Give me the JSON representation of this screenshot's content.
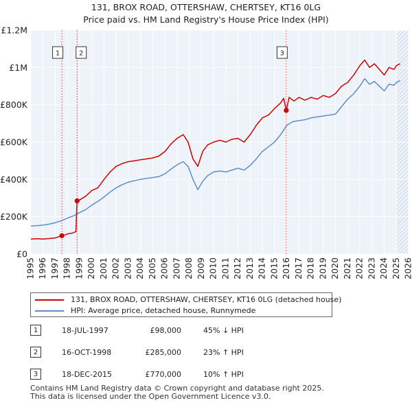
{
  "chart_data": {
    "type": "line",
    "title": "131, BROX ROAD, OTTERSHAW, CHERTSEY, KT16 0LG",
    "subtitle": "Price paid vs. HM Land Registry's House Price Index (HPI)",
    "xlim": [
      1995,
      2026
    ],
    "ylim": [
      0,
      1200000
    ],
    "xticks": [
      1995,
      1996,
      1997,
      1998,
      1999,
      2000,
      2001,
      2002,
      2003,
      2004,
      2005,
      2006,
      2007,
      2008,
      2009,
      2010,
      2011,
      2012,
      2013,
      2014,
      2015,
      2016,
      2017,
      2018,
      2019,
      2020,
      2021,
      2022,
      2023,
      2024,
      2025,
      2026
    ],
    "yticks": [
      {
        "value": 0,
        "label": "£0"
      },
      {
        "value": 200000,
        "label": "£200K"
      },
      {
        "value": 400000,
        "label": "£400K"
      },
      {
        "value": 600000,
        "label": "£600K"
      },
      {
        "value": 800000,
        "label": "£800K"
      },
      {
        "value": 1000000,
        "label": "£1M"
      },
      {
        "value": 1200000,
        "label": "£1.2M"
      }
    ],
    "forecast_start": 2025.0,
    "series": [
      {
        "name": "131, BROX ROAD, OTTERSHAW, CHERTSEY, KT16 0LG (detached house)",
        "color": "#cc0000",
        "x": [
          1995.0,
          1995.5,
          1996.0,
          1996.5,
          1997.0,
          1997.54,
          1997.8,
          1998.0,
          1998.4,
          1998.7,
          1998.79,
          1998.8,
          1999.0,
          1999.5,
          2000.0,
          2000.5,
          2001.0,
          2001.5,
          2002.0,
          2002.5,
          2003.0,
          2003.5,
          2004.0,
          2004.5,
          2005.0,
          2005.5,
          2006.0,
          2006.5,
          2007.0,
          2007.5,
          2007.9,
          2008.3,
          2008.7,
          2009.1,
          2009.5,
          2010.0,
          2010.5,
          2011.0,
          2011.5,
          2012.0,
          2012.5,
          2013.0,
          2013.5,
          2014.0,
          2014.5,
          2015.0,
          2015.5,
          2015.75,
          2015.96,
          2016.2,
          2016.6,
          2017.0,
          2017.5,
          2018.0,
          2018.5,
          2019.0,
          2019.5,
          2020.0,
          2020.5,
          2021.0,
          2021.5,
          2022.0,
          2022.4,
          2022.8,
          2023.2,
          2023.6,
          2024.0,
          2024.4,
          2024.8,
          2025.0,
          2025.3
        ],
        "values": [
          80000,
          82000,
          80000,
          83000,
          86000,
          98000,
          102000,
          108000,
          112000,
          120000,
          285000,
          275000,
          290000,
          310000,
          340000,
          355000,
          400000,
          440000,
          470000,
          485000,
          495000,
          500000,
          505000,
          510000,
          515000,
          525000,
          550000,
          590000,
          620000,
          640000,
          600000,
          510000,
          470000,
          550000,
          585000,
          600000,
          610000,
          600000,
          615000,
          620000,
          600000,
          640000,
          690000,
          730000,
          745000,
          780000,
          810000,
          835000,
          770000,
          840000,
          820000,
          840000,
          825000,
          840000,
          830000,
          850000,
          840000,
          860000,
          900000,
          920000,
          960000,
          1010000,
          1040000,
          1000000,
          1020000,
          990000,
          960000,
          1000000,
          990000,
          1010000,
          1020000
        ]
      },
      {
        "name": "HPI: Average price, detached house, Runnymede",
        "color": "#5b8fc9",
        "x": [
          1995.0,
          1995.5,
          1996.0,
          1996.5,
          1997.0,
          1997.5,
          1998.0,
          1998.5,
          1999.0,
          1999.5,
          2000.0,
          2000.5,
          2001.0,
          2001.5,
          2002.0,
          2002.5,
          2003.0,
          2003.5,
          2004.0,
          2004.5,
          2005.0,
          2005.5,
          2006.0,
          2006.5,
          2007.0,
          2007.5,
          2007.9,
          2008.3,
          2008.7,
          2009.1,
          2009.5,
          2010.0,
          2010.5,
          2011.0,
          2011.5,
          2012.0,
          2012.5,
          2013.0,
          2013.5,
          2014.0,
          2014.5,
          2015.0,
          2015.5,
          2016.0,
          2016.5,
          2017.0,
          2017.5,
          2018.0,
          2018.5,
          2019.0,
          2019.5,
          2020.0,
          2020.5,
          2021.0,
          2021.5,
          2022.0,
          2022.4,
          2022.8,
          2023.2,
          2023.6,
          2024.0,
          2024.4,
          2024.8,
          2025.0,
          2025.3
        ],
        "values": [
          150000,
          152000,
          155000,
          160000,
          168000,
          178000,
          192000,
          205000,
          222000,
          238000,
          262000,
          282000,
          305000,
          332000,
          355000,
          372000,
          385000,
          393000,
          400000,
          405000,
          410000,
          415000,
          430000,
          455000,
          478000,
          495000,
          470000,
          400000,
          345000,
          390000,
          420000,
          440000,
          445000,
          440000,
          450000,
          460000,
          450000,
          475000,
          510000,
          550000,
          575000,
          600000,
          640000,
          690000,
          710000,
          715000,
          720000,
          730000,
          735000,
          740000,
          745000,
          750000,
          790000,
          830000,
          860000,
          900000,
          940000,
          910000,
          925000,
          900000,
          875000,
          910000,
          905000,
          920000,
          930000
        ]
      }
    ],
    "sales": [
      {
        "marker": "1",
        "x": 1997.54,
        "price": 98000,
        "date": "18-JUL-1997",
        "price_label": "£98,000",
        "hpi": "45% ↓ HPI"
      },
      {
        "marker": "2",
        "x": 1998.79,
        "price": 285000,
        "date": "16-OCT-1998",
        "price_label": "£285,000",
        "hpi": "23% ↑ HPI"
      },
      {
        "marker": "3",
        "x": 2015.96,
        "price": 770000,
        "date": "18-DEC-2015",
        "price_label": "£770,000",
        "hpi": "10% ↑ HPI"
      }
    ]
  },
  "legend": {
    "property": "131, BROX ROAD, OTTERSHAW, CHERTSEY, KT16 0LG (detached house)",
    "hpi": "HPI: Average price, detached house, Runnymede"
  },
  "transactions": [
    {
      "marker": "1",
      "date": "18-JUL-1997",
      "price": "£98,000",
      "hpi": "45% ↓ HPI"
    },
    {
      "marker": "2",
      "date": "16-OCT-1998",
      "price": "£285,000",
      "hpi": "23% ↑ HPI"
    },
    {
      "marker": "3",
      "date": "18-DEC-2015",
      "price": "£770,000",
      "hpi": "10% ↑ HPI"
    }
  ],
  "footer": {
    "line1": "Contains HM Land Registry data © Crown copyright and database right 2025.",
    "line2": "This data is licensed under the Open Government Licence v3.0."
  },
  "colors": {
    "property_line": "#cc0000",
    "hpi_line": "#5b8fc9",
    "plot_bg": "#eef2f9",
    "forecast_hatch": "#b8c6dd"
  }
}
